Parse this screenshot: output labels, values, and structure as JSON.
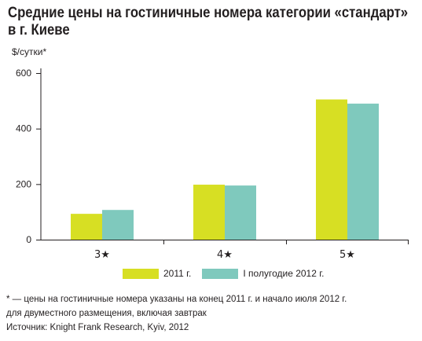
{
  "title_line1": "Средние цены на гостиничные номера категории «стандарт»",
  "title_line2": "в г. Киеве",
  "unit_label": "$/сутки*",
  "footnote_line1": "* — цены на гостиничные номера указаны на конец 2011 г. и начало июля 2012 г.",
  "footnote_line2": "для двуместного размещения, включая завтрак",
  "source": "Источник: Knight Frank Research, Kyiv, 2012",
  "colors": {
    "series_2011": "#d7df23",
    "series_2012": "#7fc9bd"
  },
  "chart_data": {
    "type": "bar",
    "title": "Средние цены на гостиничные номера категории «стандарт» в г. Киеве",
    "ylabel": "$/сутки*",
    "xlabel": "",
    "categories": [
      "3★",
      "4★",
      "5★"
    ],
    "series": [
      {
        "name": "2011 г.",
        "values": [
          93,
          198,
          505
        ]
      },
      {
        "name": "I полугодие 2012 г.",
        "values": [
          107,
          195,
          490
        ]
      }
    ],
    "yticks": [
      "0",
      "200",
      "400",
      "600"
    ],
    "ylim": [
      0,
      600
    ],
    "grid": false,
    "legend": "bottom-center"
  }
}
